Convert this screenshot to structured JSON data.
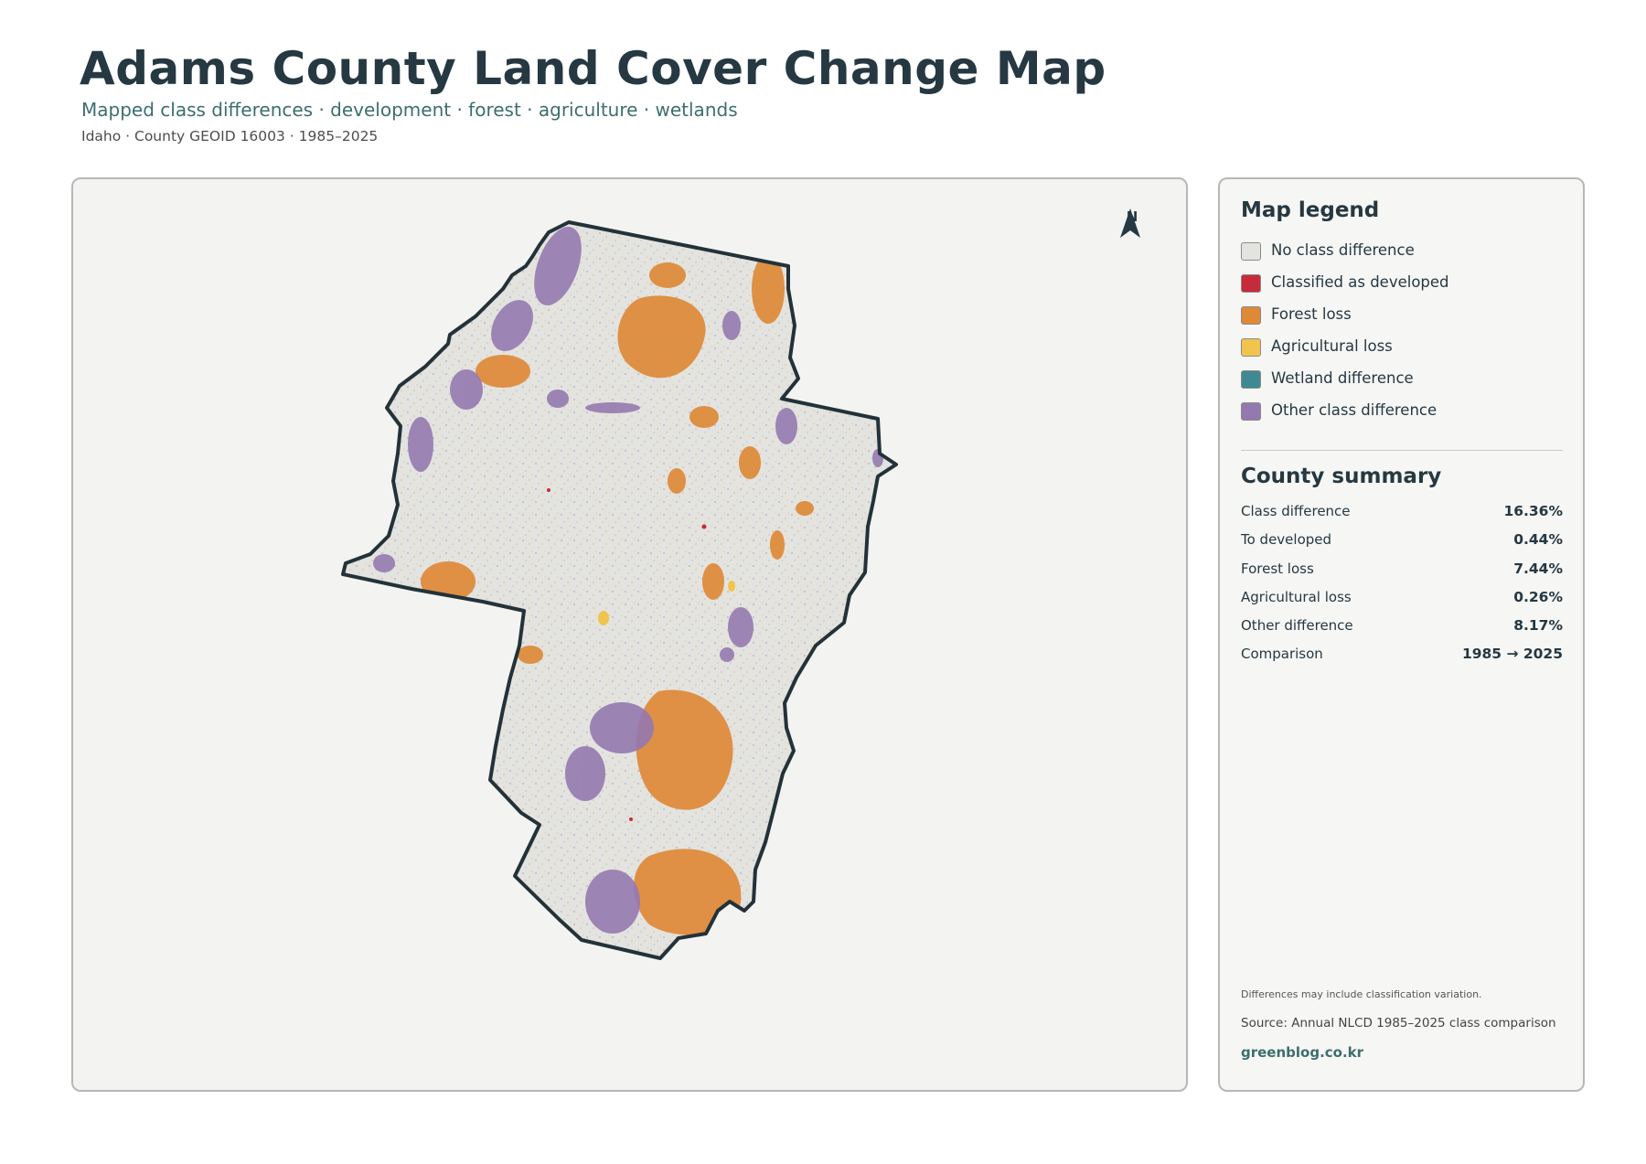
{
  "header": {
    "title": "Adams County Land Cover Change Map",
    "subtitle": "Mapped class differences · development · forest · agriculture · wetlands",
    "meta": "Idaho · County GEOID 16003 · 1985–2025"
  },
  "map": {
    "north_label": "N",
    "colors": {
      "no_change": "#e3e3df",
      "developed": "#c52b3a",
      "forest_loss": "#de8937",
      "agricultural_loss": "#f0c44d",
      "wetland": "#3f8a92",
      "other": "#9479b0",
      "outline": "#233239"
    }
  },
  "legend": {
    "title": "Map legend",
    "items": [
      {
        "label": "No class difference",
        "color": "#e3e3df"
      },
      {
        "label": "Classified as developed",
        "color": "#c52b3a"
      },
      {
        "label": "Forest loss",
        "color": "#de8937"
      },
      {
        "label": "Agricultural loss",
        "color": "#f0c44d"
      },
      {
        "label": "Wetland difference",
        "color": "#3f8a92"
      },
      {
        "label": "Other class difference",
        "color": "#9479b0"
      }
    ]
  },
  "summary": {
    "title": "County summary",
    "rows": [
      {
        "label": "Class difference",
        "value": "16.36%"
      },
      {
        "label": "To developed",
        "value": "0.44%"
      },
      {
        "label": "Forest loss",
        "value": "7.44%"
      },
      {
        "label": "Agricultural loss",
        "value": "0.26%"
      },
      {
        "label": "Other difference",
        "value": "8.17%"
      },
      {
        "label": "Comparison",
        "value": "1985 → 2025"
      }
    ]
  },
  "footer": {
    "note": "Differences may include classification variation.",
    "source": "Source: Annual NLCD 1985–2025 class comparison",
    "credit": "greenblog.co.kr"
  }
}
